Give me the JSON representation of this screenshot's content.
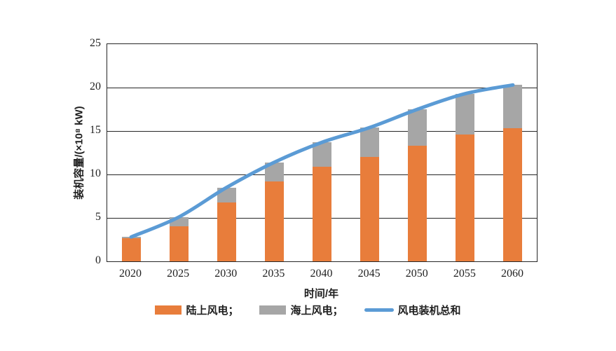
{
  "page": {
    "background": "#ffffff"
  },
  "chart_data": {
    "type": "bar",
    "stacked": true,
    "title": "",
    "xlabel": "时间/年",
    "ylabel": "装机容量/(×10⁸ kW)",
    "categories": [
      "2020",
      "2025",
      "2030",
      "2035",
      "2040",
      "2045",
      "2050",
      "2055",
      "2060"
    ],
    "series": [
      {
        "name": "陆上风电",
        "kind": "bar",
        "color": "#E87D3B",
        "values": [
          2.7,
          4.0,
          6.8,
          9.2,
          10.9,
          12.0,
          13.3,
          14.6,
          15.3
        ]
      },
      {
        "name": "海上风电",
        "kind": "bar",
        "color": "#A6A6A6",
        "values": [
          0.1,
          1.1,
          1.7,
          2.2,
          2.8,
          3.4,
          4.2,
          4.7,
          5.0
        ]
      },
      {
        "name": "风电装机总和",
        "kind": "line",
        "color": "#5B9BD5",
        "values": [
          2.8,
          5.1,
          8.5,
          11.4,
          13.7,
          15.4,
          17.5,
          19.3,
          20.3
        ]
      }
    ],
    "legend_labels": [
      "陆上风电；",
      "海上风电；",
      "风电装机总和"
    ],
    "legend_position": "bottom",
    "ylim": [
      0,
      25
    ],
    "yticks": [
      0,
      5,
      10,
      15,
      20,
      25
    ],
    "grid": "horizontal",
    "axis_color": "#262626",
    "text_color": "#1f1f1f"
  }
}
